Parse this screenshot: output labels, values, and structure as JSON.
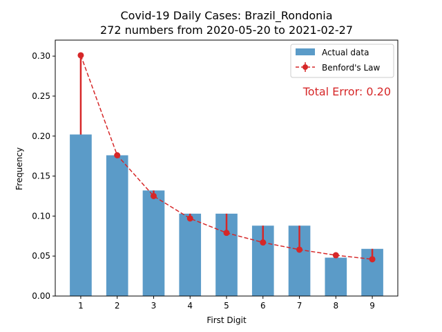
{
  "chart_data": {
    "type": "bar",
    "title_line1": "Covid-19 Daily Cases: Brazil_Rondonia",
    "title_line2": "272 numbers from 2020-05-20 to 2021-02-27",
    "xlabel": "First Digit",
    "ylabel": "Frequency",
    "categories": [
      "1",
      "2",
      "3",
      "4",
      "5",
      "6",
      "7",
      "8",
      "9"
    ],
    "x": [
      1,
      2,
      3,
      4,
      5,
      6,
      7,
      8,
      9
    ],
    "ylim": [
      0,
      0.32
    ],
    "yticks": [
      0.0,
      0.05,
      0.1,
      0.15,
      0.2,
      0.25,
      0.3
    ],
    "ytick_labels": [
      "0.00",
      "0.05",
      "0.10",
      "0.15",
      "0.20",
      "0.25",
      "0.30"
    ],
    "series": [
      {
        "name": "Actual data",
        "type": "bar",
        "color": "#5b9bc8",
        "values": [
          0.202,
          0.176,
          0.132,
          0.103,
          0.103,
          0.088,
          0.088,
          0.048,
          0.059
        ]
      },
      {
        "name": "Benford's Law",
        "type": "line-dashed-with-markers",
        "color": "#d62728",
        "values": [
          0.301,
          0.176,
          0.125,
          0.097,
          0.079,
          0.067,
          0.058,
          0.051,
          0.046
        ]
      }
    ],
    "legend_position": "top-right",
    "annotation": "Total Error: 0.20",
    "annotation_color": "#d62728",
    "grid": false
  }
}
